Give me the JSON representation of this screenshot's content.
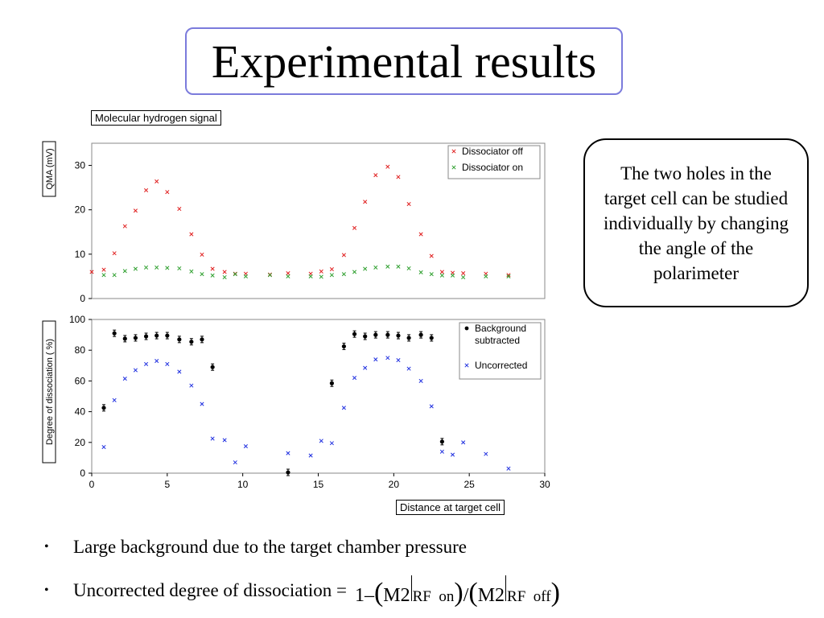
{
  "slide": {
    "title": "Experimental results",
    "callout_text": "The two holes in the target cell can be studied individually by changing the angle of the polarimeter",
    "bullets": [
      "Large background due to the target chamber pressure",
      "Uncorrected degree of dissociation = "
    ],
    "formula": {
      "prefix": "1–",
      "symbol": "M",
      "index": "2",
      "sub_on": "RF  on",
      "sub_off": "RF  off",
      "slash": "/"
    }
  },
  "chart_data": [
    {
      "type": "scatter",
      "title": "Molecular hydrogen signal",
      "xlabel": "",
      "ylabel": "QMA (mV)",
      "xlim": [
        0,
        30
      ],
      "ylim": [
        0,
        35
      ],
      "yticks": [
        0,
        10,
        20,
        30
      ],
      "grid": false,
      "legend_position": "top-right",
      "series": [
        {
          "name": "Dissociator off",
          "color": "#e02020",
          "marker": "x",
          "points": [
            [
              0,
              6.0
            ],
            [
              0.8,
              6.5
            ],
            [
              1.5,
              10.2
            ],
            [
              2.2,
              16.3
            ],
            [
              2.9,
              19.8
            ],
            [
              3.6,
              24.4
            ],
            [
              4.3,
              26.4
            ],
            [
              5.0,
              24.0
            ],
            [
              5.8,
              20.2
            ],
            [
              6.6,
              14.5
            ],
            [
              7.3,
              9.9
            ],
            [
              8.0,
              6.7
            ],
            [
              8.8,
              6.0
            ],
            [
              9.5,
              5.6
            ],
            [
              10.2,
              5.6
            ],
            [
              11.8,
              5.4
            ],
            [
              13.0,
              5.7
            ],
            [
              14.5,
              5.6
            ],
            [
              15.2,
              6.1
            ],
            [
              15.9,
              6.6
            ],
            [
              16.7,
              9.8
            ],
            [
              17.4,
              15.9
            ],
            [
              18.1,
              21.8
            ],
            [
              18.8,
              27.8
            ],
            [
              19.6,
              29.7
            ],
            [
              20.3,
              27.4
            ],
            [
              21.0,
              21.3
            ],
            [
              21.8,
              14.5
            ],
            [
              22.5,
              9.6
            ],
            [
              23.2,
              6.0
            ],
            [
              23.9,
              5.8
            ],
            [
              24.6,
              5.7
            ],
            [
              26.1,
              5.6
            ],
            [
              27.6,
              5.3
            ]
          ]
        },
        {
          "name": "Dissociator on",
          "color": "#30a030",
          "marker": "x",
          "points": [
            [
              0.8,
              5.3
            ],
            [
              1.5,
              5.3
            ],
            [
              2.2,
              6.2
            ],
            [
              2.9,
              6.7
            ],
            [
              3.6,
              7.0
            ],
            [
              4.3,
              7.0
            ],
            [
              5.0,
              6.9
            ],
            [
              5.8,
              6.8
            ],
            [
              6.6,
              6.1
            ],
            [
              7.3,
              5.5
            ],
            [
              8.0,
              5.2
            ],
            [
              8.8,
              4.8
            ],
            [
              9.5,
              5.5
            ],
            [
              10.2,
              5.0
            ],
            [
              11.8,
              5.3
            ],
            [
              13.0,
              5.0
            ],
            [
              14.5,
              5.0
            ],
            [
              15.2,
              4.9
            ],
            [
              15.9,
              5.3
            ],
            [
              16.7,
              5.5
            ],
            [
              17.4,
              6.0
            ],
            [
              18.1,
              6.7
            ],
            [
              18.8,
              7.0
            ],
            [
              19.6,
              7.2
            ],
            [
              20.3,
              7.2
            ],
            [
              21.0,
              6.8
            ],
            [
              21.8,
              5.9
            ],
            [
              22.5,
              5.5
            ],
            [
              23.2,
              5.2
            ],
            [
              23.9,
              5.2
            ],
            [
              24.6,
              4.8
            ],
            [
              26.1,
              5.0
            ],
            [
              27.6,
              5.0
            ]
          ]
        }
      ]
    },
    {
      "type": "scatter",
      "title": "",
      "xlabel": "Distance at target cell",
      "ylabel": "Degree of dissociation ( %)",
      "xlim": [
        0,
        30
      ],
      "ylim": [
        0,
        100
      ],
      "xticks": [
        0,
        5,
        10,
        15,
        20,
        25,
        30
      ],
      "yticks": [
        0,
        20,
        40,
        60,
        80,
        100
      ],
      "grid": false,
      "legend_position": "top-right",
      "series": [
        {
          "name": "Background subtracted",
          "color": "#000000",
          "marker": "dot-errorbar",
          "points": [
            [
              0.8,
              42.5
            ],
            [
              1.5,
              91.0
            ],
            [
              2.2,
              87.5
            ],
            [
              2.9,
              88.0
            ],
            [
              3.6,
              89.0
            ],
            [
              4.3,
              89.5
            ],
            [
              5.0,
              89.5
            ],
            [
              5.8,
              87.0
            ],
            [
              6.6,
              85.5
            ],
            [
              7.3,
              87.0
            ],
            [
              8.0,
              69.0
            ],
            [
              13.0,
              0.5
            ],
            [
              15.9,
              58.5
            ],
            [
              16.7,
              82.5
            ],
            [
              17.4,
              90.5
            ],
            [
              18.1,
              89.0
            ],
            [
              18.8,
              90.0
            ],
            [
              19.6,
              90.0
            ],
            [
              20.3,
              89.5
            ],
            [
              21.0,
              88.0
            ],
            [
              21.8,
              90.0
            ],
            [
              22.5,
              88.0
            ],
            [
              23.2,
              20.5
            ]
          ]
        },
        {
          "name": "Uncorrected",
          "color": "#2030e0",
          "marker": "x",
          "points": [
            [
              0.8,
              17.0
            ],
            [
              1.5,
              47.5
            ],
            [
              2.2,
              61.5
            ],
            [
              2.9,
              67.0
            ],
            [
              3.6,
              71.0
            ],
            [
              4.3,
              73.0
            ],
            [
              5.0,
              71.0
            ],
            [
              5.8,
              66.0
            ],
            [
              6.6,
              57.0
            ],
            [
              7.3,
              45.0
            ],
            [
              8.0,
              22.5
            ],
            [
              8.8,
              21.5
            ],
            [
              9.5,
              7.0
            ],
            [
              10.2,
              17.5
            ],
            [
              13.0,
              13.0
            ],
            [
              14.5,
              11.5
            ],
            [
              15.2,
              21.0
            ],
            [
              15.9,
              19.5
            ],
            [
              16.7,
              42.5
            ],
            [
              17.4,
              62.0
            ],
            [
              18.1,
              68.5
            ],
            [
              18.8,
              74.0
            ],
            [
              19.6,
              75.0
            ],
            [
              20.3,
              73.5
            ],
            [
              21.0,
              68.0
            ],
            [
              21.8,
              60.0
            ],
            [
              22.5,
              43.5
            ],
            [
              23.2,
              14.0
            ],
            [
              23.9,
              12.0
            ],
            [
              24.6,
              20.0
            ],
            [
              26.1,
              12.5
            ],
            [
              27.6,
              3.0
            ]
          ]
        }
      ]
    }
  ]
}
